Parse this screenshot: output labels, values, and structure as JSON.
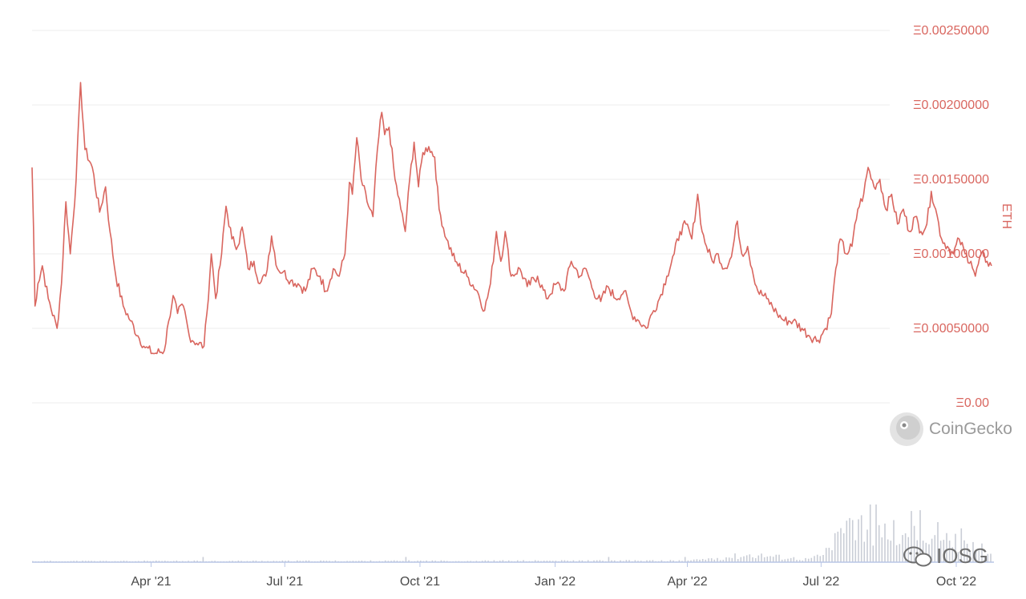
{
  "chart_data": {
    "type": "line",
    "ylabel": "ETH",
    "ylim": [
      0,
      0.0025
    ],
    "y_ticks": [
      "Ξ0.00",
      "Ξ0.00050000",
      "Ξ0.00100000",
      "Ξ0.00150000",
      "Ξ0.00200000",
      "Ξ0.00250000"
    ],
    "y_tick_values": [
      0,
      0.0005,
      0.001,
      0.0015,
      0.002,
      0.0025
    ],
    "x_ticks": [
      "Apr '21",
      "Jul '21",
      "Oct '21",
      "Jan '22",
      "Apr '22",
      "Jul '22",
      "Oct '22"
    ],
    "x_tick_dates": [
      "2021-04-01",
      "2021-07-01",
      "2021-10-01",
      "2022-01-01",
      "2022-04-01",
      "2022-07-01",
      "2022-10-01"
    ],
    "xlim": [
      "2021-01-10",
      "2022-10-25"
    ],
    "grid": true,
    "series": [
      {
        "color": "#d9665f",
        "points": [
          [
            "2021-01-10",
            0.00158
          ],
          [
            "2021-01-11",
            0.00118
          ],
          [
            "2021-01-12",
            0.00065
          ],
          [
            "2021-01-14",
            0.0008
          ],
          [
            "2021-01-17",
            0.00092
          ],
          [
            "2021-01-21",
            0.0007
          ],
          [
            "2021-01-27",
            0.0005
          ],
          [
            "2021-01-30",
            0.0008
          ],
          [
            "2021-02-02",
            0.00135
          ],
          [
            "2021-02-05",
            0.001
          ],
          [
            "2021-02-09",
            0.0015
          ],
          [
            "2021-02-12",
            0.00215
          ],
          [
            "2021-02-15",
            0.0017
          ],
          [
            "2021-02-20",
            0.00158
          ],
          [
            "2021-02-25",
            0.00128
          ],
          [
            "2021-03-01",
            0.00145
          ],
          [
            "2021-03-04",
            0.00115
          ],
          [
            "2021-03-08",
            0.00085
          ],
          [
            "2021-03-13",
            0.00065
          ],
          [
            "2021-03-18",
            0.00055
          ],
          [
            "2021-03-23",
            0.00045
          ],
          [
            "2021-03-28",
            0.00037
          ],
          [
            "2021-04-03",
            0.00033
          ],
          [
            "2021-04-10",
            0.00035
          ],
          [
            "2021-04-13",
            0.00055
          ],
          [
            "2021-04-16",
            0.00072
          ],
          [
            "2021-04-19",
            0.0006
          ],
          [
            "2021-04-23",
            0.00065
          ],
          [
            "2021-04-27",
            0.00045
          ],
          [
            "2021-05-02",
            0.0004
          ],
          [
            "2021-05-07",
            0.00038
          ],
          [
            "2021-05-09",
            0.0006
          ],
          [
            "2021-05-12",
            0.001
          ],
          [
            "2021-05-15",
            0.0007
          ],
          [
            "2021-05-19",
            0.001
          ],
          [
            "2021-05-22",
            0.00132
          ],
          [
            "2021-05-26",
            0.0011
          ],
          [
            "2021-05-30",
            0.00105
          ],
          [
            "2021-06-02",
            0.00118
          ],
          [
            "2021-06-06",
            0.0009
          ],
          [
            "2021-06-10",
            0.00095
          ],
          [
            "2021-06-14",
            0.0008
          ],
          [
            "2021-06-18",
            0.00085
          ],
          [
            "2021-06-22",
            0.00112
          ],
          [
            "2021-06-26",
            0.0009
          ],
          [
            "2021-06-30",
            0.00088
          ],
          [
            "2021-07-05",
            0.00082
          ],
          [
            "2021-07-10",
            0.0008
          ],
          [
            "2021-07-15",
            0.00075
          ],
          [
            "2021-07-20",
            0.0009
          ],
          [
            "2021-07-25",
            0.00085
          ],
          [
            "2021-07-29",
            0.00075
          ],
          [
            "2021-08-03",
            0.0009
          ],
          [
            "2021-08-07",
            0.00085
          ],
          [
            "2021-08-11",
            0.001
          ],
          [
            "2021-08-14",
            0.00148
          ],
          [
            "2021-08-16",
            0.0014
          ],
          [
            "2021-08-19",
            0.00178
          ],
          [
            "2021-08-22",
            0.0015
          ],
          [
            "2021-08-26",
            0.00135
          ],
          [
            "2021-08-30",
            0.00125
          ],
          [
            "2021-09-02",
            0.0017
          ],
          [
            "2021-09-05",
            0.00195
          ],
          [
            "2021-09-07",
            0.0018
          ],
          [
            "2021-09-10",
            0.00185
          ],
          [
            "2021-09-14",
            0.0015
          ],
          [
            "2021-09-18",
            0.0013
          ],
          [
            "2021-09-21",
            0.00115
          ],
          [
            "2021-09-24",
            0.0015
          ],
          [
            "2021-09-27",
            0.00175
          ],
          [
            "2021-09-30",
            0.00145
          ],
          [
            "2021-10-03",
            0.00168
          ],
          [
            "2021-10-07",
            0.00172
          ],
          [
            "2021-10-11",
            0.00165
          ],
          [
            "2021-10-14",
            0.0013
          ],
          [
            "2021-10-19",
            0.0011
          ],
          [
            "2021-10-25",
            0.00095
          ],
          [
            "2021-11-02",
            0.00085
          ],
          [
            "2021-11-09",
            0.00075
          ],
          [
            "2021-11-14",
            0.00062
          ],
          [
            "2021-11-18",
            0.0008
          ],
          [
            "2021-11-22",
            0.00115
          ],
          [
            "2021-11-25",
            0.00095
          ],
          [
            "2021-11-28",
            0.00115
          ],
          [
            "2021-12-02",
            0.00085
          ],
          [
            "2021-12-08",
            0.0009
          ],
          [
            "2021-12-13",
            0.00078
          ],
          [
            "2021-12-20",
            0.00085
          ],
          [
            "2021-12-26",
            0.0007
          ],
          [
            "2022-01-02",
            0.0008
          ],
          [
            "2022-01-07",
            0.00075
          ],
          [
            "2022-01-12",
            0.00095
          ],
          [
            "2022-01-18",
            0.00085
          ],
          [
            "2022-01-22",
            0.0009
          ],
          [
            "2022-01-27",
            0.00075
          ],
          [
            "2022-02-01",
            0.00068
          ],
          [
            "2022-02-06",
            0.00078
          ],
          [
            "2022-02-11",
            0.0007
          ],
          [
            "2022-02-17",
            0.00075
          ],
          [
            "2022-02-22",
            0.0006
          ],
          [
            "2022-02-27",
            0.00055
          ],
          [
            "2022-03-04",
            0.0005
          ],
          [
            "2022-03-08",
            0.0006
          ],
          [
            "2022-03-13",
            0.0007
          ],
          [
            "2022-03-18",
            0.00085
          ],
          [
            "2022-03-23",
            0.001
          ],
          [
            "2022-03-27",
            0.00115
          ],
          [
            "2022-03-31",
            0.0012
          ],
          [
            "2022-04-04",
            0.0011
          ],
          [
            "2022-04-08",
            0.0014
          ],
          [
            "2022-04-11",
            0.00115
          ],
          [
            "2022-04-14",
            0.00105
          ],
          [
            "2022-04-18",
            0.00095
          ],
          [
            "2022-04-22",
            0.001
          ],
          [
            "2022-04-26",
            0.0009
          ],
          [
            "2022-05-01",
            0.00098
          ],
          [
            "2022-05-05",
            0.00122
          ],
          [
            "2022-05-08",
            0.001
          ],
          [
            "2022-05-12",
            0.00105
          ],
          [
            "2022-05-15",
            0.0009
          ],
          [
            "2022-05-19",
            0.00075
          ],
          [
            "2022-05-25",
            0.0007
          ],
          [
            "2022-06-01",
            0.0006
          ],
          [
            "2022-06-06",
            0.00055
          ],
          [
            "2022-06-12",
            0.00055
          ],
          [
            "2022-06-18",
            0.0005
          ],
          [
            "2022-06-23",
            0.00045
          ],
          [
            "2022-06-29",
            0.00042
          ],
          [
            "2022-07-04",
            0.0005
          ],
          [
            "2022-07-08",
            0.0006
          ],
          [
            "2022-07-11",
            0.0009
          ],
          [
            "2022-07-14",
            0.0011
          ],
          [
            "2022-07-18",
            0.001
          ],
          [
            "2022-07-22",
            0.00105
          ],
          [
            "2022-07-26",
            0.0013
          ],
          [
            "2022-07-30",
            0.0014
          ],
          [
            "2022-08-02",
            0.00158
          ],
          [
            "2022-08-06",
            0.00145
          ],
          [
            "2022-08-10",
            0.0015
          ],
          [
            "2022-08-14",
            0.0013
          ],
          [
            "2022-08-18",
            0.0014
          ],
          [
            "2022-08-22",
            0.0012
          ],
          [
            "2022-08-26",
            0.0013
          ],
          [
            "2022-08-30",
            0.00115
          ],
          [
            "2022-09-03",
            0.00125
          ],
          [
            "2022-09-07",
            0.00115
          ],
          [
            "2022-09-11",
            0.0012
          ],
          [
            "2022-09-14",
            0.00142
          ],
          [
            "2022-09-17",
            0.0013
          ],
          [
            "2022-09-21",
            0.0011
          ],
          [
            "2022-09-25",
            0.00105
          ],
          [
            "2022-09-29",
            0.001
          ],
          [
            "2022-10-03",
            0.0011
          ],
          [
            "2022-10-07",
            0.001
          ],
          [
            "2022-10-11",
            0.00095
          ],
          [
            "2022-10-14",
            0.00085
          ],
          [
            "2022-10-18",
            0.001
          ],
          [
            "2022-10-22",
            0.00095
          ],
          [
            "2022-10-25",
            0.00092
          ]
        ]
      }
    ],
    "volume_panel": {
      "color": "#c9cdd6",
      "note_is_relative": false,
      "profile": [
        [
          "2021-01-10",
          0.02
        ],
        [
          "2022-04-01",
          0.03
        ],
        [
          "2022-05-15",
          0.15
        ],
        [
          "2022-06-20",
          0.06
        ],
        [
          "2022-07-01",
          0.12
        ],
        [
          "2022-07-15",
          0.55
        ],
        [
          "2022-07-26",
          0.85
        ],
        [
          "2022-08-10",
          0.65
        ],
        [
          "2022-09-01",
          0.55
        ],
        [
          "2022-09-20",
          0.6
        ],
        [
          "2022-10-05",
          0.35
        ],
        [
          "2022-10-25",
          0.2
        ]
      ]
    }
  },
  "branding": {
    "logo_text": "CoinGecko",
    "watermark_text": "IOSG"
  }
}
